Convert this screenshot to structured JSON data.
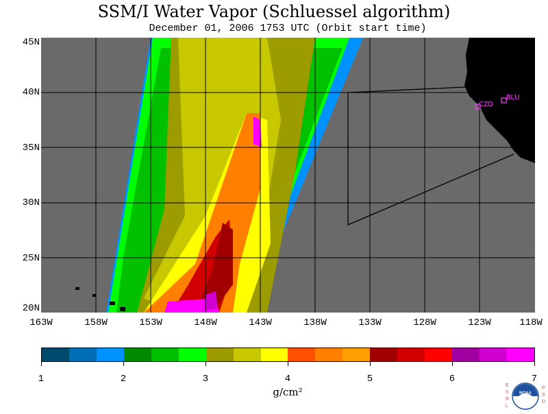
{
  "title": "SSM/I Water Vapor (Schluessel algorithm)",
  "subtitle": "December 01, 2006  1753 UTC  (Orbit start time)",
  "map": {
    "lat_labels": [
      "45N",
      "40N",
      "35N",
      "30N",
      "25N",
      "20N"
    ],
    "lon_labels": [
      "163W",
      "158W",
      "153W",
      "148W",
      "143W",
      "138W",
      "133W",
      "128W",
      "123W",
      "118W"
    ],
    "stations": [
      "CZD",
      "BLU"
    ],
    "background_color": "#6a6a6a",
    "land_color": "#000000",
    "station_color": "#ff40ff"
  },
  "colorbar": {
    "colors": [
      "#004a6e",
      "#006fb5",
      "#0092ff",
      "#008a00",
      "#00c000",
      "#00ff00",
      "#9c9c00",
      "#c8c800",
      "#ffff00",
      "#ff5000",
      "#ff8000",
      "#ffa000",
      "#a00000",
      "#d00000",
      "#ff0000",
      "#a000a0",
      "#d000d0",
      "#ff00ff"
    ],
    "tick_labels": [
      "1",
      "2",
      "3",
      "4",
      "5",
      "6",
      "7"
    ],
    "unit": "g/cm²"
  },
  "logo": {
    "left_text": "ESRL",
    "right_text": "PSD",
    "center_text": "NOAA"
  }
}
